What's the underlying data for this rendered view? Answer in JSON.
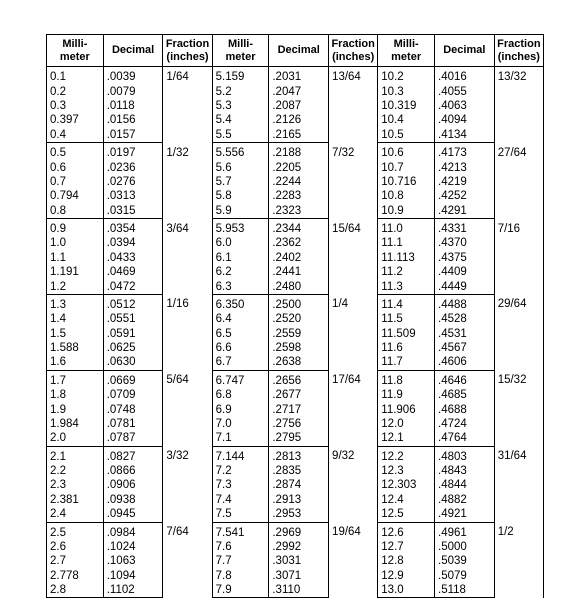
{
  "headers": {
    "mm": "Milli-\nmeter",
    "dec": "Decimal",
    "frac": "Fraction\n(inches)"
  },
  "style": {
    "border_color": "#000000",
    "background_color": "#ffffff",
    "text_color": "#000000",
    "font_family": "Arial",
    "header_fontsize_pt": 8.5,
    "body_fontsize_pt": 9
  },
  "groups": [
    {
      "frac1": "1/64",
      "frac2": "13/64",
      "frac3": "13/32",
      "rows": [
        {
          "mm1": "0.1",
          "d1": ".0039",
          "mm2": "5.159",
          "d2": ".2031",
          "mm3": "10.2",
          "d3": ".4016"
        },
        {
          "mm1": "0.2",
          "d1": ".0079",
          "mm2": "5.2",
          "d2": ".2047",
          "mm3": "10.3",
          "d3": ".4055"
        },
        {
          "mm1": "0.3",
          "d1": ".0118",
          "mm2": "5.3",
          "d2": ".2087",
          "mm3": "10.319",
          "d3": ".4063"
        },
        {
          "mm1": "0.397",
          "d1": ".0156",
          "mm2": "5.4",
          "d2": ".2126",
          "mm3": "10.4",
          "d3": ".4094"
        },
        {
          "mm1": "0.4",
          "d1": ".0157",
          "mm2": "5.5",
          "d2": ".2165",
          "mm3": "10.5",
          "d3": ".4134"
        }
      ]
    },
    {
      "frac1": "1/32",
      "frac2": "7/32",
      "frac3": "27/64",
      "rows": [
        {
          "mm1": "0.5",
          "d1": ".0197",
          "mm2": "5.556",
          "d2": ".2188",
          "mm3": "10.6",
          "d3": ".4173"
        },
        {
          "mm1": "0.6",
          "d1": ".0236",
          "mm2": "5.6",
          "d2": ".2205",
          "mm3": "10.7",
          "d3": ".4213"
        },
        {
          "mm1": "0.7",
          "d1": ".0276",
          "mm2": "5.7",
          "d2": ".2244",
          "mm3": "10.716",
          "d3": ".4219"
        },
        {
          "mm1": "0.794",
          "d1": ".0313",
          "mm2": "5.8",
          "d2": ".2283",
          "mm3": "10.8",
          "d3": ".4252"
        },
        {
          "mm1": "0.8",
          "d1": ".0315",
          "mm2": "5.9",
          "d2": ".2323",
          "mm3": "10.9",
          "d3": ".4291"
        }
      ]
    },
    {
      "frac1": "3/64",
      "frac2": "15/64",
      "frac3": "7/16",
      "rows": [
        {
          "mm1": "0.9",
          "d1": ".0354",
          "mm2": "5.953",
          "d2": ".2344",
          "mm3": "11.0",
          "d3": ".4331"
        },
        {
          "mm1": "1.0",
          "d1": ".0394",
          "mm2": "6.0",
          "d2": ".2362",
          "mm3": "11.1",
          "d3": ".4370"
        },
        {
          "mm1": "1.1",
          "d1": ".0433",
          "mm2": "6.1",
          "d2": ".2402",
          "mm3": "11.113",
          "d3": ".4375"
        },
        {
          "mm1": "1.191",
          "d1": ".0469",
          "mm2": "6.2",
          "d2": ".2441",
          "mm3": "11.2",
          "d3": ".4409"
        },
        {
          "mm1": "1.2",
          "d1": ".0472",
          "mm2": "6.3",
          "d2": ".2480",
          "mm3": "11.3",
          "d3": ".4449"
        }
      ]
    },
    {
      "frac1": "1/16",
      "frac2": "1/4",
      "frac3": "29/64",
      "rows": [
        {
          "mm1": "1.3",
          "d1": ".0512",
          "mm2": "6.350",
          "d2": ".2500",
          "mm3": "11.4",
          "d3": ".4488"
        },
        {
          "mm1": "1.4",
          "d1": ".0551",
          "mm2": "6.4",
          "d2": ".2520",
          "mm3": "11.5",
          "d3": ".4528"
        },
        {
          "mm1": "1.5",
          "d1": ".0591",
          "mm2": "6.5",
          "d2": ".2559",
          "mm3": "11.509",
          "d3": ".4531"
        },
        {
          "mm1": "1.588",
          "d1": ".0625",
          "mm2": "6.6",
          "d2": ".2598",
          "mm3": "11.6",
          "d3": ".4567"
        },
        {
          "mm1": "1.6",
          "d1": ".0630",
          "mm2": "6.7",
          "d2": ".2638",
          "mm3": "11.7",
          "d3": ".4606"
        }
      ]
    },
    {
      "frac1": "5/64",
      "frac2": "17/64",
      "frac3": "15/32",
      "rows": [
        {
          "mm1": "1.7",
          "d1": ".0669",
          "mm2": "6.747",
          "d2": ".2656",
          "mm3": "11.8",
          "d3": ".4646"
        },
        {
          "mm1": "1.8",
          "d1": ".0709",
          "mm2": "6.8",
          "d2": ".2677",
          "mm3": "11.9",
          "d3": ".4685"
        },
        {
          "mm1": "1.9",
          "d1": ".0748",
          "mm2": "6.9",
          "d2": ".2717",
          "mm3": "11.906",
          "d3": ".4688"
        },
        {
          "mm1": "1.984",
          "d1": ".0781",
          "mm2": "7.0",
          "d2": ".2756",
          "mm3": "12.0",
          "d3": ".4724"
        },
        {
          "mm1": "2.0",
          "d1": ".0787",
          "mm2": "7.1",
          "d2": ".2795",
          "mm3": "12.1",
          "d3": ".4764"
        }
      ]
    },
    {
      "frac1": "3/32",
      "frac2": "9/32",
      "frac3": "31/64",
      "rows": [
        {
          "mm1": "2.1",
          "d1": ".0827",
          "mm2": "7.144",
          "d2": ".2813",
          "mm3": "12.2",
          "d3": ".4803"
        },
        {
          "mm1": "2.2",
          "d1": ".0866",
          "mm2": "7.2",
          "d2": ".2835",
          "mm3": "12.3",
          "d3": ".4843"
        },
        {
          "mm1": "2.3",
          "d1": ".0906",
          "mm2": "7.3",
          "d2": ".2874",
          "mm3": "12.303",
          "d3": ".4844"
        },
        {
          "mm1": "2.381",
          "d1": ".0938",
          "mm2": "7.4",
          "d2": ".2913",
          "mm3": "12.4",
          "d3": ".4882"
        },
        {
          "mm1": "2.4",
          "d1": ".0945",
          "mm2": "7.5",
          "d2": ".2953",
          "mm3": "12.5",
          "d3": ".4921"
        }
      ]
    },
    {
      "frac1": "7/64",
      "frac2": "19/64",
      "frac3": "1/2",
      "rows": [
        {
          "mm1": "2.5",
          "d1": ".0984",
          "mm2": "7.541",
          "d2": ".2969",
          "mm3": "12.6",
          "d3": ".4961"
        },
        {
          "mm1": "2.6",
          "d1": ".1024",
          "mm2": "7.6",
          "d2": ".2992",
          "mm3": "12.7",
          "d3": ".5000"
        },
        {
          "mm1": "2.7",
          "d1": ".1063",
          "mm2": "7.7",
          "d2": ".3031",
          "mm3": "12.8",
          "d3": ".5039"
        },
        {
          "mm1": "2.778",
          "d1": ".1094",
          "mm2": "7.8",
          "d2": ".3071",
          "mm3": "12.9",
          "d3": ".5079"
        },
        {
          "mm1": "2.8",
          "d1": ".1102",
          "mm2": "7.9",
          "d2": ".3110",
          "mm3": "13.0",
          "d3": ".5118"
        }
      ]
    }
  ]
}
